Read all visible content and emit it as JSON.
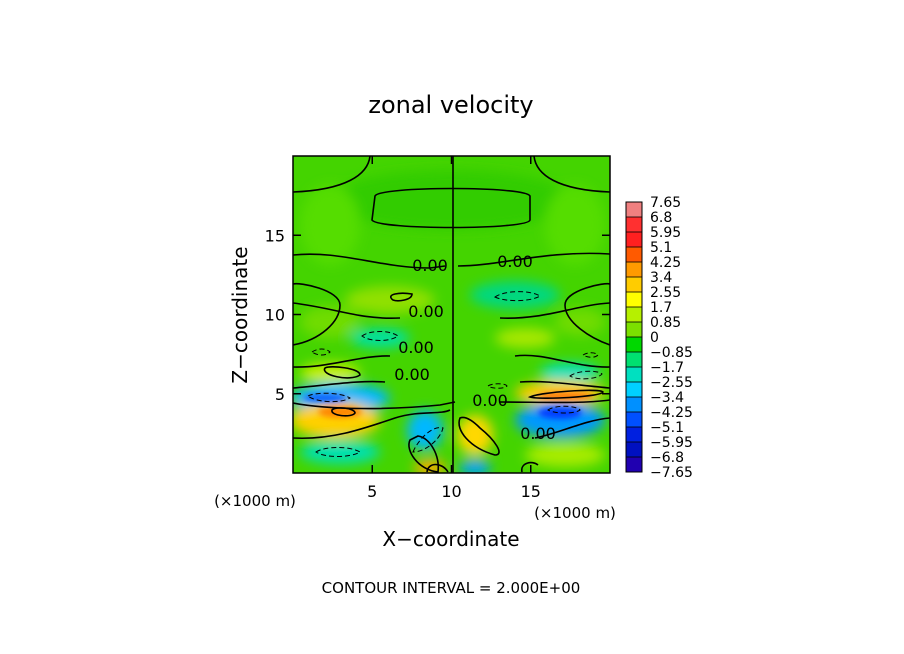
{
  "chart_data": {
    "type": "heatmap",
    "title": "zonal velocity",
    "xlabel": "X−coordinate",
    "ylabel": "Z−coordinate",
    "x_unit_label": "(×1000 m)",
    "x_unit_label_right": "(×1000 m)",
    "y_unit_label": "(×1000 m)",
    "xlim": [
      0,
      20
    ],
    "ylim": [
      0,
      20
    ],
    "x_ticks": [
      {
        "value": 5,
        "label": "5"
      },
      {
        "value": 10,
        "label": "10"
      },
      {
        "value": 15,
        "label": "15"
      }
    ],
    "y_ticks": [
      {
        "value": 5,
        "label": "5"
      },
      {
        "value": 10,
        "label": "10"
      },
      {
        "value": 15,
        "label": "15"
      }
    ],
    "colorbar": {
      "min": -7.65,
      "max": 7.65,
      "labels": [
        "7.65",
        "6.8",
        "5.95",
        "5.1",
        "4.25",
        "3.4",
        "2.55",
        "1.7",
        "0.85",
        "0",
        "−0.85",
        "−1.7",
        "−2.55",
        "−3.4",
        "−4.25",
        "−5.1",
        "−5.95",
        "−6.8",
        "−7.65"
      ],
      "colors": [
        "#f08080",
        "#ff3030",
        "#ff2020",
        "#ff5a00",
        "#ff9a00",
        "#ffcc00",
        "#ffff00",
        "#b6f000",
        "#7ce000",
        "#00d800",
        "#00e070",
        "#00e0c0",
        "#00d0ff",
        "#0090ff",
        "#0050ff",
        "#0020e0",
        "#0010c0",
        "#2000b0",
        "#6000b0"
      ]
    },
    "contour_labels": [
      "0.00",
      "0.00",
      "0.00",
      "0.00",
      "0.00",
      "0.00",
      "0.00",
      "0.00"
    ],
    "footer": "CONTOUR INTERVAL = 2.000E+00"
  }
}
